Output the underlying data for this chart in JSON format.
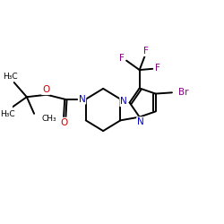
{
  "background_color": "#ffffff",
  "figsize": [
    2.5,
    2.5
  ],
  "dpi": 100,
  "colors": {
    "N": "#0000cc",
    "O": "#cc0000",
    "Br": "#8b008b",
    "F": "#8b008b",
    "C": "#000000"
  },
  "lw": 1.4,
  "fontsize": 7.0,
  "xlim": [
    0,
    10
  ],
  "ylim": [
    0,
    10
  ]
}
